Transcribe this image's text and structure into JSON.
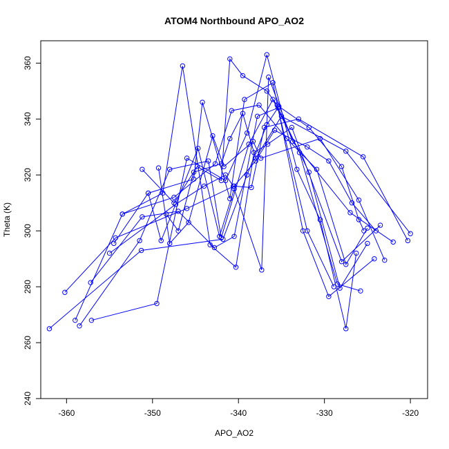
{
  "chart_data": {
    "type": "line",
    "title": "ATOM4 Northbound APO_AO2",
    "xlabel": "APO_AO2",
    "ylabel": "Theta (K)",
    "xlim": [
      -363,
      -318
    ],
    "ylim": [
      240,
      368
    ],
    "x_ticks": [
      -360,
      -350,
      -340,
      -330,
      -320
    ],
    "y_ticks": [
      240,
      260,
      280,
      300,
      320,
      340,
      360
    ],
    "grid": false,
    "series": [
      {
        "color": "#0000ff",
        "x": [
          -362.0,
          -351.3,
          -341.8,
          -339.0,
          -336.7,
          -335.3,
          -331.8,
          -328.0,
          -326.0,
          -325.4
        ],
        "y": [
          265,
          293,
          297,
          320,
          338,
          344.5,
          337,
          323,
          304,
          300
        ]
      },
      {
        "color": "#0000ff",
        "x": [
          -360.2,
          -354.3,
          -346.0,
          -340.5,
          -338.0,
          -335.8,
          -332.0,
          -329.5,
          -326.8,
          -324.0
        ],
        "y": [
          278,
          297.5,
          308,
          316,
          325,
          336,
          330,
          325,
          310,
          300
        ]
      },
      {
        "color": "#0000ff",
        "x": [
          -359.0,
          -353.5,
          -347.5,
          -342.7,
          -340.8,
          -337.6,
          -334.4,
          -330.9,
          -327.5,
          -325.0
        ],
        "y": [
          268,
          306,
          312,
          324,
          343,
          345,
          333,
          322,
          288,
          301
        ]
      },
      {
        "color": "#0000ff",
        "x": [
          -358.5,
          -351.5,
          -348.0,
          -343.5,
          -342.0,
          -338.8,
          -336.0,
          -332.9,
          -328.5,
          -325.8
        ],
        "y": [
          266,
          296.5,
          322,
          325,
          297.5,
          331,
          347,
          328,
          281,
          278.5
        ]
      },
      {
        "color": "#0000ff",
        "x": [
          -357.1,
          -349.5,
          -346.0,
          -341.5,
          -339.0,
          -336.7,
          -333.2,
          -330.5,
          -327.5,
          -326.3
        ],
        "y": [
          268,
          274,
          326,
          318,
          335,
          363,
          322,
          304,
          265,
          292
        ]
      },
      {
        "color": "#0000ff",
        "x": [
          -357.2,
          -351.2,
          -347.0,
          -342.8,
          -340.5,
          -337.8,
          -335.4,
          -331.8,
          -328.2,
          -325.0
        ],
        "y": [
          281.5,
          305,
          307,
          294,
          298,
          341,
          344,
          321,
          279.5,
          295.5
        ]
      },
      {
        "color": "#0000ff",
        "x": [
          -354.5,
          -350.5,
          -345.2,
          -344.2,
          -341.0,
          -339.3,
          -336.0,
          -332.5,
          -329.5,
          -324.2
        ],
        "y": [
          295.5,
          313.5,
          318.5,
          346,
          311.5,
          347,
          353,
          300,
          276.5,
          290
        ]
      },
      {
        "color": "#0000ff",
        "x": [
          -353.5,
          -348.8,
          -346.5,
          -343.3,
          -340.3,
          -338.2,
          -336.6,
          -333.8,
          -328.0,
          -323.5
        ],
        "y": [
          306,
          313.5,
          359,
          295,
          287,
          328,
          331,
          337,
          289,
          302
        ]
      },
      {
        "color": "#0000ff",
        "x": [
          -351.2,
          -347.5,
          -344.8,
          -342.0,
          -341.0,
          -339.5,
          -336.7,
          -335.5,
          -332.0,
          -328.9
        ],
        "y": [
          322,
          310,
          323,
          318,
          361.5,
          355.5,
          350,
          345,
          300,
          280
        ]
      },
      {
        "color": "#0000ff",
        "x": [
          -350.5,
          -349.0,
          -344.7,
          -342.2,
          -340.5,
          -337.3,
          -336.5,
          -333.7,
          -327.0,
          -322.0
        ],
        "y": [
          313.5,
          296.5,
          329.5,
          298,
          315,
          286,
          355,
          332,
          306.5,
          296
        ]
      },
      {
        "color": "#0000ff",
        "x": [
          -349.3,
          -348.0,
          -345.8,
          -343.0,
          -341.7,
          -338.3,
          -337.4,
          -330.5,
          -326.0,
          -323.0
        ],
        "y": [
          322.5,
          295.5,
          303,
          334,
          323,
          332,
          326,
          333,
          311,
          289.5
        ]
      },
      {
        "color": "#0000ff",
        "x": [
          -348.4,
          -347.0,
          -345.2,
          -342.0,
          -341.0,
          -339.5,
          -338.0,
          -335.0,
          -327.5,
          -320.0
        ],
        "y": [
          306,
          300,
          321,
          324,
          333,
          342,
          326,
          341,
          328.5,
          299
        ]
      },
      {
        "color": "#0000ff",
        "x": [
          -355.0,
          -347.3,
          -344.0,
          -341.5,
          -340.6,
          -338.5,
          -337.0,
          -333.0,
          -325.5,
          -320.3
        ],
        "y": [
          292,
          309.5,
          316,
          320,
          316,
          315.5,
          337,
          340,
          326.5,
          296.5
        ]
      }
    ]
  }
}
